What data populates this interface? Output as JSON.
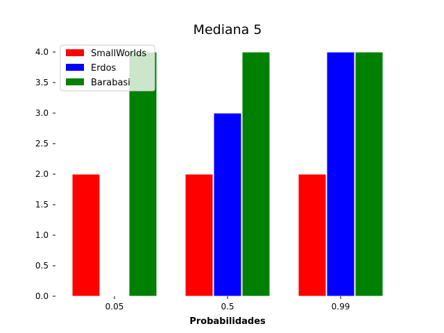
{
  "chart_data": {
    "type": "bar",
    "title": "Mediana 5",
    "xlabel": "Probabilidades",
    "ylabel": "",
    "categories": [
      "0.05",
      "0.5",
      "0.99"
    ],
    "series": [
      {
        "name": "SmallWorlds",
        "color": "#ff0000",
        "values": [
          2,
          2,
          2
        ]
      },
      {
        "name": "Erdos",
        "color": "#0000ff",
        "values": [
          0,
          3,
          4
        ]
      },
      {
        "name": "Barabasi",
        "color": "#008000",
        "values": [
          4,
          4,
          4
        ]
      }
    ],
    "ylim": [
      0,
      4
    ],
    "yticks": [
      "0.0",
      "0.5",
      "1.0",
      "1.5",
      "2.0",
      "2.5",
      "3.0",
      "3.5",
      "4.0"
    ],
    "grid": false,
    "legend_position": "top-left"
  }
}
